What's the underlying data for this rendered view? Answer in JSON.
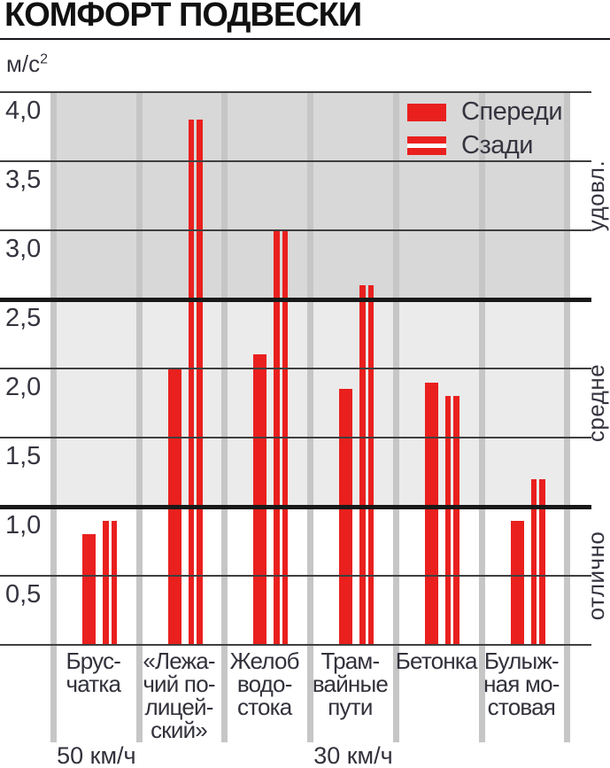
{
  "title": "КОМФОРТ ПОДВЕСКИ",
  "chart_data": {
    "type": "bar",
    "title": "КОМФОРТ ПОДВЕСКИ",
    "ylabel_base": "м/с",
    "ylabel_sup": "2",
    "ylim": [
      0,
      4.0
    ],
    "ytick_step": 0.5,
    "yticks": [
      {
        "value": 4.0,
        "label": "4,0"
      },
      {
        "value": 3.5,
        "label": "3,5"
      },
      {
        "value": 3.0,
        "label": "3,0"
      },
      {
        "value": 2.5,
        "label": "2,5"
      },
      {
        "value": 2.0,
        "label": "2,0"
      },
      {
        "value": 1.5,
        "label": "1,5"
      },
      {
        "value": 1.0,
        "label": "1,0"
      },
      {
        "value": 0.5,
        "label": "0,5"
      }
    ],
    "categories": [
      "Брусчатка",
      "«Лежачий полицейский»",
      "Желоб водостока",
      "Трамвайные пути",
      "Бетонка",
      "Булыжная мостовая"
    ],
    "category_label_lines": [
      [
        "Брус-",
        "чатка"
      ],
      [
        "«Лежа-",
        "чий по-",
        "лицей-",
        "ский»"
      ],
      [
        "Желоб",
        "водо-",
        "стока"
      ],
      [
        "Трам-",
        "вайные",
        "пути"
      ],
      [
        "Бетонка"
      ],
      [
        "Булыж-",
        "ная мо-",
        "стовая"
      ]
    ],
    "series": [
      {
        "name": "Спереди",
        "swatch": "solid",
        "values": [
          0.8,
          2.0,
          2.1,
          1.85,
          1.9,
          0.9
        ]
      },
      {
        "name": "Сзади",
        "swatch": "double-stripe",
        "values": [
          0.9,
          3.8,
          3.0,
          2.6,
          1.8,
          1.2
        ]
      }
    ],
    "zones": [
      {
        "name": "удовл.",
        "from": 2.5,
        "to": 4.0,
        "color": "#d8d8d8"
      },
      {
        "name": "средне",
        "from": 1.0,
        "to": 2.5,
        "color": "#ebebeb"
      },
      {
        "name": "отлично",
        "from": 0,
        "to": 1.0,
        "color": "#ffffff"
      }
    ],
    "speed_notes": [
      {
        "text": "50 км/ч",
        "column_index": 0
      },
      {
        "text": "30 км/ч",
        "column_index": 3
      }
    ],
    "grid": true,
    "legend_position": "top-right",
    "colors": {
      "bar_red": "#e9201e",
      "zone_dark": "#d8d8d8",
      "zone_mid": "#ebebeb",
      "separator": "#c6c6c6",
      "grid_thin": "#3f3f3f",
      "grid_thick": "#191919",
      "text_dark": "#35343f",
      "title_black": "#111111"
    }
  }
}
